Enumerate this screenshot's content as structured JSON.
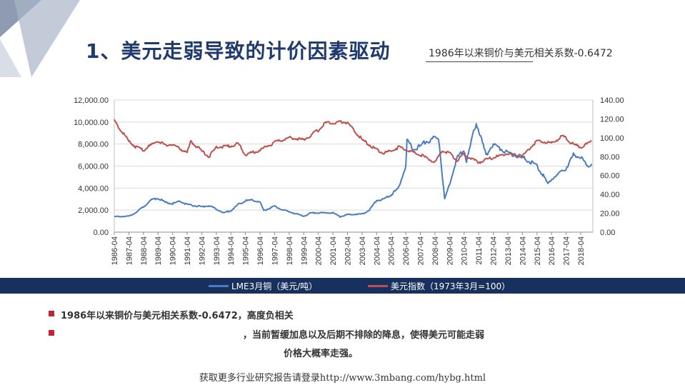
{
  "slide": {
    "title": "1、美元走弱导致的计价因素驱动",
    "subtitle": "1986年以来铜价与美元相关系数-0.6472",
    "bullets": [
      "1986年以来铜价与美元相关系数-0.6472，高度负相关",
      "，当前暂缓加息以及后期不排除的降息，使得美元可能走弱",
      "价格大概率走强。"
    ],
    "footer": "获取更多行业研究报告请登录http://www.3mbang.com/hybg.html"
  },
  "colors": {
    "navy": "#17305d",
    "title": "#1f3a6e",
    "copper": "#4a7cc4",
    "usd": "#c0504d",
    "bullet": "#c0262c"
  },
  "chart_data": {
    "type": "line",
    "x_ticks": [
      "1986-04",
      "1987-04",
      "1988-04",
      "1989-04",
      "1990-04",
      "1991-04",
      "1992-04",
      "1993-04",
      "1994-04",
      "1995-04",
      "1996-04",
      "1997-04",
      "1998-04",
      "1999-04",
      "2000-04",
      "2001-04",
      "2002-04",
      "2003-04",
      "2004-04",
      "2005-04",
      "2006-04",
      "2007-04",
      "2008-04",
      "2009-04",
      "2010-04",
      "2011-04",
      "2012-04",
      "2013-04",
      "2014-04",
      "2015-04",
      "2016-04",
      "2017-04",
      "2018-04"
    ],
    "y_left": {
      "ticks": [
        "12,000.00",
        "10,000.00",
        "8,000.00",
        "6,000.00",
        "4,000.00",
        "2,000.00",
        "0.00"
      ],
      "range": [
        0,
        12000
      ]
    },
    "y_right": {
      "ticks": [
        "140.00",
        "120.00",
        "100.00",
        "80.00",
        "60.00",
        "40.00",
        "20.00",
        "0.00"
      ],
      "range": [
        0,
        140
      ]
    },
    "series": [
      {
        "name": "LME3月铜（美元/吨）",
        "axis": "left",
        "points": [
          [
            "1986-04",
            1400
          ],
          [
            "1987-04",
            1450
          ],
          [
            "1987-10",
            1800
          ],
          [
            "1988-04",
            2300
          ],
          [
            "1988-10",
            2900
          ],
          [
            "1989-04",
            3100
          ],
          [
            "1989-10",
            2700
          ],
          [
            "1990-04",
            2600
          ],
          [
            "1990-10",
            2800
          ],
          [
            "1991-04",
            2500
          ],
          [
            "1992-04",
            2300
          ],
          [
            "1992-10",
            2400
          ],
          [
            "1993-04",
            2100
          ],
          [
            "1993-10",
            1750
          ],
          [
            "1994-04",
            1950
          ],
          [
            "1994-10",
            2500
          ],
          [
            "1995-04",
            2850
          ],
          [
            "1995-10",
            2900
          ],
          [
            "1996-04",
            2700
          ],
          [
            "1996-07",
            1950
          ],
          [
            "1997-04",
            2350
          ],
          [
            "1997-10",
            2050
          ],
          [
            "1998-04",
            1850
          ],
          [
            "1999-04",
            1450
          ],
          [
            "1999-10",
            1750
          ],
          [
            "2000-04",
            1750
          ],
          [
            "2001-04",
            1750
          ],
          [
            "2001-10",
            1400
          ],
          [
            "2002-04",
            1600
          ],
          [
            "2003-04",
            1650
          ],
          [
            "2003-10",
            2000
          ],
          [
            "2004-04",
            2900
          ],
          [
            "2004-10",
            3000
          ],
          [
            "2005-04",
            3400
          ],
          [
            "2005-10",
            4000
          ],
          [
            "2006-04",
            6000
          ],
          [
            "2006-05",
            8400
          ],
          [
            "2006-10",
            7500
          ],
          [
            "2007-04",
            7800
          ],
          [
            "2007-07",
            8200
          ],
          [
            "2008-04",
            8500
          ],
          [
            "2008-07",
            8600
          ],
          [
            "2008-12",
            3000
          ],
          [
            "2009-04",
            4300
          ],
          [
            "2009-10",
            6700
          ],
          [
            "2010-04",
            7500
          ],
          [
            "2010-06",
            6400
          ],
          [
            "2011-02",
            10000
          ],
          [
            "2011-10",
            7000
          ],
          [
            "2012-04",
            8000
          ],
          [
            "2013-04",
            7200
          ],
          [
            "2014-04",
            6800
          ],
          [
            "2015-04",
            6000
          ],
          [
            "2015-10",
            5000
          ],
          [
            "2016-01",
            4400
          ],
          [
            "2016-04",
            4800
          ],
          [
            "2017-04",
            5800
          ],
          [
            "2017-10",
            7000
          ],
          [
            "2018-04",
            6900
          ],
          [
            "2018-09",
            6000
          ],
          [
            "2019-01",
            6200
          ]
        ]
      },
      {
        "name": "美元指数（1973年3月=100）",
        "axis": "right",
        "points": [
          [
            "1986-04",
            118
          ],
          [
            "1987-04",
            96
          ],
          [
            "1987-10",
            90
          ],
          [
            "1988-04",
            87
          ],
          [
            "1989-04",
            97
          ],
          [
            "1989-10",
            92
          ],
          [
            "1990-04",
            93
          ],
          [
            "1991-04",
            84
          ],
          [
            "1991-07",
            96
          ],
          [
            "1992-04",
            86
          ],
          [
            "1992-10",
            80
          ],
          [
            "1993-04",
            90
          ],
          [
            "1994-04",
            91
          ],
          [
            "1994-10",
            94
          ],
          [
            "1995-04",
            82
          ],
          [
            "1996-04",
            87
          ],
          [
            "1997-04",
            95
          ],
          [
            "1998-04",
            100
          ],
          [
            "1999-04",
            98
          ],
          [
            "2000-04",
            108
          ],
          [
            "2000-10",
            116
          ],
          [
            "2001-04",
            115
          ],
          [
            "2001-10",
            117
          ],
          [
            "2002-04",
            116
          ],
          [
            "2003-04",
            98
          ],
          [
            "2004-04",
            87
          ],
          [
            "2004-10",
            84
          ],
          [
            "2005-04",
            86
          ],
          [
            "2005-10",
            90
          ],
          [
            "2006-04",
            87
          ],
          [
            "2007-04",
            82
          ],
          [
            "2008-04",
            74
          ],
          [
            "2008-10",
            86
          ],
          [
            "2009-04",
            84
          ],
          [
            "2009-10",
            76
          ],
          [
            "2010-04",
            82
          ],
          [
            "2011-04",
            74
          ],
          [
            "2012-04",
            79
          ],
          [
            "2013-04",
            83
          ],
          [
            "2014-04",
            80
          ],
          [
            "2015-04",
            97
          ],
          [
            "2016-04",
            94
          ],
          [
            "2017-01",
            102
          ],
          [
            "2017-10",
            93
          ],
          [
            "2018-04",
            90
          ],
          [
            "2019-01",
            96
          ]
        ]
      }
    ],
    "grid": true,
    "legend_position": "bottom"
  }
}
